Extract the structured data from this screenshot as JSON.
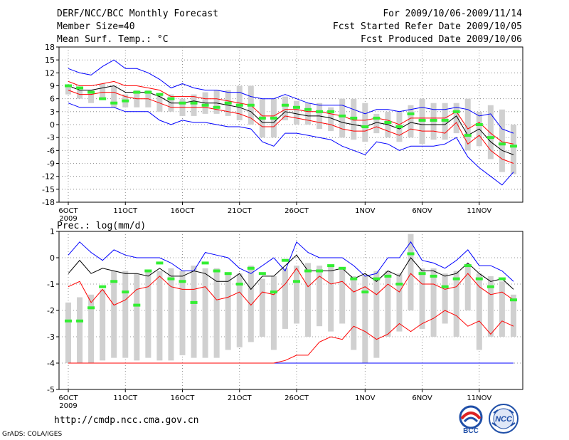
{
  "header": {
    "title": "DERF/NCC/BCC Monthly Forecast",
    "members": "Member Size=40",
    "variable": "Mean Surf. Temp.: °C",
    "period": "For 2009/10/06-2009/11/14",
    "started": "Fcst Started Refer Date 2009/10/05",
    "produced": "Fcst Produced Date 2009/10/06"
  },
  "footer": {
    "url": "http://cmdp.ncc.cma.gov.cn",
    "credit": "GrADS: COLA/IGES"
  },
  "logos": {
    "bcc_text": "BCC",
    "ncc_text": "NCC"
  },
  "colors": {
    "box": "#d0d0d0",
    "median": "#000000",
    "range": "#0000ff",
    "inner": "#ff0000",
    "obs": "#33ee33",
    "grid": "#777777"
  },
  "chart_data": [
    {
      "type": "box-range",
      "title": "Mean Surf. Temp.: °C",
      "ylabel": "°C",
      "ylim": [
        -18,
        18
      ],
      "yticks": [
        -18,
        -15,
        -12,
        -9,
        -6,
        -3,
        0,
        3,
        6,
        9,
        12,
        15,
        18
      ],
      "xticks": [
        {
          "day": 0,
          "label": "6OCT"
        },
        {
          "day": 5,
          "label": "11OCT"
        },
        {
          "day": 10,
          "label": "16OCT"
        },
        {
          "day": 15,
          "label": "21OCT"
        },
        {
          "day": 20,
          "label": "26OCT"
        },
        {
          "day": 26,
          "label": "1NOV"
        },
        {
          "day": 31,
          "label": "6NOV"
        },
        {
          "day": 36,
          "label": "11NOV"
        }
      ],
      "year_label": "2009",
      "days": 40,
      "max": [
        13,
        12,
        11.5,
        13.5,
        15,
        13,
        13,
        12,
        10.5,
        8.5,
        9.5,
        8.5,
        8,
        8,
        7.5,
        7.5,
        6.5,
        6,
        6,
        7,
        6,
        5,
        4.5,
        4.5,
        4.5,
        3.5,
        2.5,
        3.5,
        3.5,
        3,
        3.5,
        4,
        3.5,
        3.5,
        4,
        3.5,
        2,
        2.5,
        -1,
        -2
      ],
      "box_top": [
        9,
        8,
        8,
        9.5,
        9,
        7,
        8,
        8,
        7,
        7,
        6,
        7,
        7.5,
        8,
        8,
        9,
        9,
        6,
        6,
        6.5,
        5.5,
        5,
        5,
        4,
        6,
        6,
        5,
        2.5,
        3,
        3,
        4.5,
        6,
        5,
        5,
        5,
        6,
        3,
        4.5,
        3.5,
        0
      ],
      "upper": [
        10,
        9,
        9,
        9.5,
        10,
        9,
        9,
        8.5,
        8,
        6.5,
        6.5,
        6.5,
        6,
        6,
        5.5,
        5,
        4.5,
        2,
        2,
        3.5,
        3.5,
        3,
        3,
        2.5,
        2,
        1,
        1,
        1.5,
        1,
        0,
        1.5,
        1.5,
        1.5,
        1.5,
        3,
        -1,
        0.5,
        -2,
        -4,
        -4.5
      ],
      "median": [
        9,
        8,
        8,
        8.5,
        9,
        7.5,
        7.5,
        7.5,
        6.5,
        5,
        5,
        5.5,
        5,
        5,
        4.5,
        4,
        3,
        0.5,
        0.5,
        3,
        2.5,
        2,
        2,
        1.5,
        0.5,
        0,
        -0.5,
        0.5,
        0,
        -1,
        0.5,
        0,
        0,
        0,
        2,
        -2.5,
        -1,
        -4,
        -6,
        -7
      ],
      "lower": [
        8,
        7,
        7,
        7.5,
        7.5,
        6.5,
        6,
        6,
        5,
        4,
        4,
        4,
        4,
        3.5,
        3,
        2.5,
        1.5,
        -0.5,
        -0.5,
        2,
        1.5,
        1,
        0.5,
        0,
        -1,
        -1.5,
        -1.5,
        -0.5,
        -1.5,
        -2.5,
        -1,
        -1.5,
        -1.5,
        -2,
        0.5,
        -4.5,
        -2.5,
        -6,
        -8,
        -9
      ],
      "box_bot": [
        7,
        6,
        5,
        6,
        4,
        4,
        4,
        4,
        3,
        3,
        2,
        2,
        2.5,
        2.5,
        2,
        1,
        0,
        -3,
        -3,
        1,
        0,
        0,
        -1,
        -1.5,
        -3,
        -3.5,
        -4,
        -2,
        -3,
        -4,
        -3,
        -4.5,
        -3.5,
        -3.5,
        -2,
        -6,
        -5,
        -8,
        -11,
        -11.5
      ],
      "min": [
        5,
        4,
        4,
        4,
        4,
        3,
        3,
        3,
        1,
        0,
        1,
        0.5,
        0.5,
        0,
        -0.5,
        -0.5,
        -1,
        -4,
        -5,
        -2,
        -2,
        -2.5,
        -3,
        -3.5,
        -5,
        -6,
        -7,
        -4,
        -4.5,
        -6,
        -5,
        -5,
        -5,
        -4.5,
        -3,
        -7.5,
        -10,
        -12,
        -14,
        -11
      ],
      "observed": [
        9,
        8.5,
        7.5,
        6,
        5,
        5.5,
        7.5,
        7.5,
        7,
        6,
        5,
        5,
        4.5,
        4,
        5,
        4.5,
        4.5,
        1.5,
        1.5,
        4.5,
        4,
        3.5,
        3,
        3,
        2,
        1.5,
        -0.5,
        1.5,
        0.5,
        -0.5,
        2.5,
        1,
        1,
        1,
        3,
        -2.5,
        0,
        -3,
        -4.5,
        -5
      ]
    },
    {
      "type": "box-range",
      "title": "Prec.: log(mm/d)",
      "ylabel": "log(mm/d)",
      "ylim": [
        -5,
        1
      ],
      "yticks": [
        -5,
        -4,
        -3,
        -2,
        -1,
        0,
        1
      ],
      "xticks": [
        {
          "day": 0,
          "label": "6OCT"
        },
        {
          "day": 5,
          "label": "11OCT"
        },
        {
          "day": 10,
          "label": "16OCT"
        },
        {
          "day": 15,
          "label": "21OCT"
        },
        {
          "day": 20,
          "label": "26OCT"
        },
        {
          "day": 26,
          "label": "1NOV"
        },
        {
          "day": 31,
          "label": "6NOV"
        },
        {
          "day": 36,
          "label": "11NOV"
        }
      ],
      "year_label": "2009",
      "days": 40,
      "max": [
        0.1,
        0.6,
        0.2,
        -0.1,
        0.3,
        0.1,
        0,
        0,
        0,
        -0.2,
        -0.5,
        -0.5,
        0.2,
        0.1,
        0,
        -0.4,
        -0.6,
        -0.3,
        0,
        -0.5,
        0.6,
        0.2,
        0,
        0,
        0,
        -0.3,
        -0.7,
        -0.6,
        0,
        0,
        0.6,
        -0.1,
        -0.2,
        -0.4,
        -0.1,
        0.3,
        -0.3,
        -0.3,
        -0.5,
        -0.9
      ],
      "box_top": [
        -1.7,
        -1.5,
        -1.4,
        -1.2,
        -0.5,
        -0.5,
        -0.6,
        -0.5,
        -0.5,
        -0.4,
        -0.5,
        -0.3,
        -0.4,
        -0.4,
        -0.6,
        -0.6,
        -0.3,
        -0.8,
        -0.7,
        -0.4,
        -0.3,
        -0.2,
        -0.3,
        -0.3,
        -0.4,
        -0.7,
        -0.7,
        -0.5,
        -0.5,
        -0.6,
        0.9,
        -0.4,
        -0.4,
        -0.6,
        -0.5,
        -0.3,
        -0.6,
        -0.7,
        -0.9,
        -1.4
      ],
      "upper": [
        -1.1,
        -0.9,
        -1.7,
        -1.2,
        -1.8,
        -1.6,
        -1.2,
        -1.1,
        -0.7,
        -1.1,
        -1.2,
        -1.2,
        -1.1,
        -1.6,
        -1.5,
        -1.3,
        -1.8,
        -1.3,
        -1.4,
        -1.0,
        -0.4,
        -1.1,
        -0.7,
        -1.0,
        -0.9,
        -1.3,
        -1.1,
        -1.4,
        -1.0,
        -1.3,
        -0.6,
        -1.0,
        -1.0,
        -1.2,
        -1.1,
        -0.6,
        -1.1,
        -1.4,
        -1.3,
        -1.6
      ],
      "median": [
        -0.6,
        -0.1,
        -0.6,
        -0.4,
        -0.5,
        -0.6,
        -0.6,
        -0.7,
        -0.4,
        -0.7,
        -0.7,
        -0.5,
        -0.6,
        -0.9,
        -0.9,
        -0.6,
        -1.2,
        -0.7,
        -0.7,
        -0.3,
        0.1,
        -0.5,
        -0.5,
        -0.5,
        -0.4,
        -0.8,
        -0.6,
        -0.9,
        -0.5,
        -0.7,
        0.0,
        -0.5,
        -0.5,
        -0.7,
        -0.6,
        -0.2,
        -0.6,
        -0.9,
        -0.8,
        -1.2
      ],
      "lower": [
        -4,
        -4,
        -4,
        -4,
        -4,
        -4,
        -4,
        -4,
        -4,
        -4,
        -4,
        -4,
        -4,
        -4,
        -4,
        -4,
        -4,
        -4,
        -4,
        -3.9,
        -3.7,
        -3.7,
        -3.2,
        -3.0,
        -3.1,
        -2.6,
        -2.8,
        -3.1,
        -2.9,
        -2.5,
        -2.8,
        -2.5,
        -2.3,
        -2.0,
        -2.2,
        -2.6,
        -2.4,
        -2.9,
        -2.4,
        -2.6
      ],
      "box_bot": [
        -4,
        -4,
        -4,
        -3.9,
        -3.8,
        -3.8,
        -3.9,
        -3.8,
        -3.9,
        -3.9,
        -3.7,
        -3.8,
        -3.8,
        -3.8,
        -3.5,
        -3.4,
        -3.2,
        -3.0,
        -3.5,
        -2.7,
        -2.5,
        -3.0,
        -2.6,
        -2.8,
        -2.5,
        -3.5,
        -4.0,
        -3.8,
        -3.0,
        -2.8,
        -2.0,
        -2.7,
        -3.0,
        -2.5,
        -3.0,
        -2.0,
        -3.5,
        -3.0,
        -3.0,
        -3.0
      ],
      "min": [
        -4,
        -4,
        -4,
        -4,
        -4,
        -4,
        -4,
        -4,
        -4,
        -4,
        -4,
        -4,
        -4,
        -4,
        -4,
        -4,
        -4,
        -4,
        -4,
        -4,
        -4,
        -4,
        -4,
        -4,
        -4,
        -4,
        -4,
        -4,
        -4,
        -4,
        -4,
        -4,
        -4,
        -4,
        -4,
        -4,
        -4,
        -4,
        -4,
        -4
      ],
      "observed": [
        -2.4,
        -2.4,
        -1.9,
        -1.1,
        -0.9,
        -1.3,
        -1.8,
        -0.5,
        -0.2,
        -0.8,
        -0.9,
        -1.7,
        -0.2,
        -0.5,
        -0.6,
        -1.0,
        -0.4,
        -0.6,
        -1.3,
        -0.1,
        -0.9,
        -0.5,
        -0.5,
        -0.3,
        -0.4,
        -0.8,
        -1.3,
        -0.8,
        -0.7,
        -1.0,
        0.15,
        -0.6,
        -0.7,
        -1.1,
        -0.8,
        -0.3,
        -0.8,
        -1.1,
        -0.8,
        -1.6
      ]
    }
  ]
}
